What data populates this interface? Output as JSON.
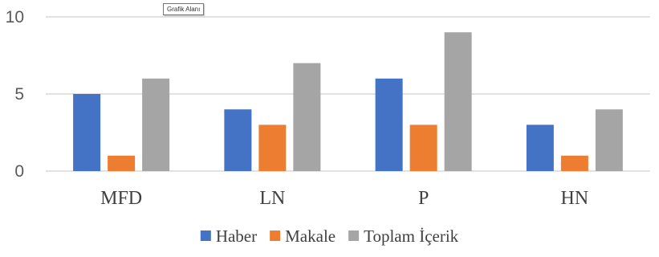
{
  "tooltip": "Grafik Alanı",
  "chart_data": {
    "type": "bar",
    "categories": [
      "MFD",
      "LN",
      "P",
      "HN"
    ],
    "series": [
      {
        "name": "Haber",
        "values": [
          5,
          4,
          6,
          3
        ],
        "color": "#4472C4"
      },
      {
        "name": "Makale",
        "values": [
          1,
          3,
          3,
          1
        ],
        "color": "#ED7D31"
      },
      {
        "name": "Toplam İçerik",
        "values": [
          6,
          7,
          9,
          4
        ],
        "color": "#A5A5A5"
      }
    ],
    "yticks": [
      "0",
      "5",
      "10"
    ],
    "ylim": [
      0,
      10
    ],
    "grid": true,
    "legend": "bottom"
  }
}
